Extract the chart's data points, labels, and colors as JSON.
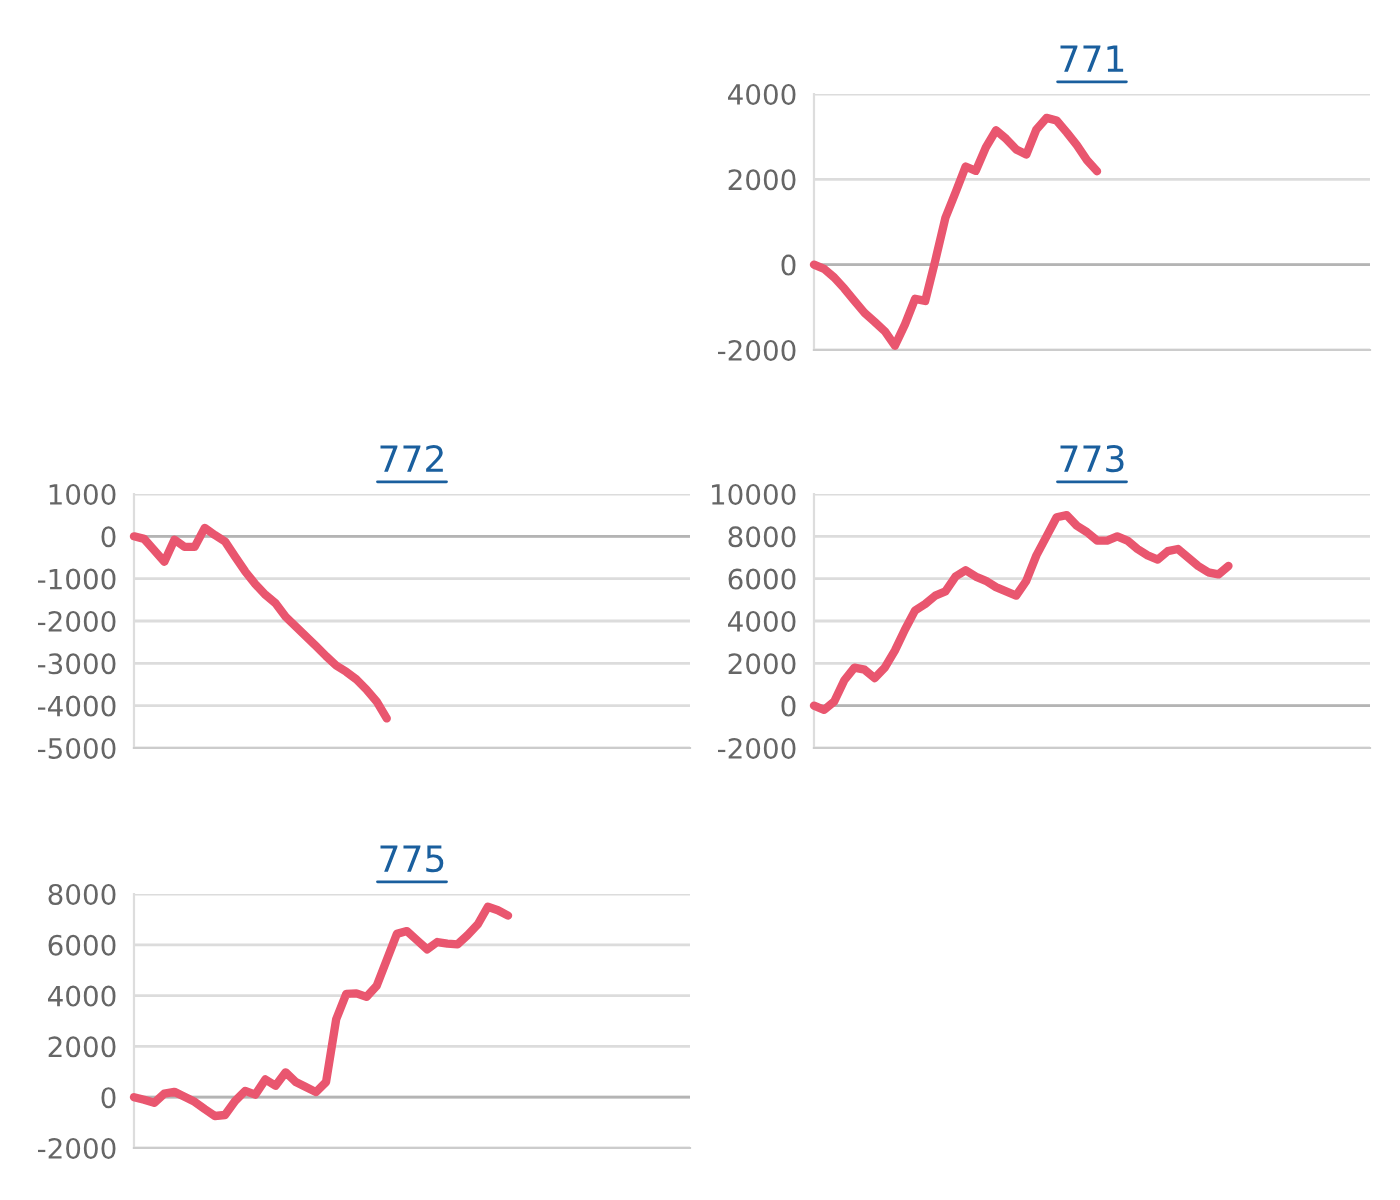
{
  "chart_data": [
    {
      "type": "line",
      "title": "771",
      "categories": [
        null,
        null,
        null,
        null,
        null,
        null,
        null,
        null,
        null,
        null,
        null,
        null,
        null,
        null,
        null,
        null,
        null,
        null,
        null,
        null,
        null,
        null,
        null,
        null,
        null,
        null,
        null,
        null,
        null,
        null,
        null,
        null,
        null,
        null,
        null,
        null,
        null,
        null,
        null,
        null,
        null,
        null,
        null,
        null,
        null,
        null,
        null,
        null,
        null,
        null,
        null,
        null,
        null,
        null,
        null,
        null
      ],
      "series": [
        {
          "color": "#e9566f",
          "values": [
            0,
            -100,
            -300,
            -560,
            -850,
            -1130,
            -1340,
            -1560,
            -1900,
            -1400,
            -800,
            -850,
            100,
            1100,
            1690,
            2300,
            2200,
            2750,
            3150,
            2950,
            2700,
            2580,
            3170,
            3440,
            3380,
            3100,
            2800,
            2450,
            2190,
            null,
            null,
            null,
            null,
            null,
            null,
            null,
            null,
            null,
            null,
            null,
            null,
            null,
            null,
            null,
            null,
            null,
            null,
            null,
            null,
            null,
            null,
            null,
            null,
            null,
            null,
            null
          ]
        }
      ],
      "ylim": [
        -2000,
        4000
      ],
      "yticks": [
        -2000,
        0,
        2000,
        4000
      ],
      "grid": "y",
      "tick_labels": "y",
      "marker": "none",
      "line_style": "solid",
      "ref_lines": [
        {
          "axis": "y",
          "value": 0,
          "color": "#b4b4b4"
        }
      ]
    },
    {
      "type": "line",
      "title": "772",
      "categories": [
        null,
        null,
        null,
        null,
        null,
        null,
        null,
        null,
        null,
        null,
        null,
        null,
        null,
        null,
        null,
        null,
        null,
        null,
        null,
        null,
        null,
        null,
        null,
        null,
        null,
        null,
        null,
        null,
        null,
        null,
        null,
        null,
        null,
        null,
        null,
        null,
        null,
        null,
        null,
        null,
        null,
        null,
        null,
        null,
        null,
        null,
        null,
        null,
        null,
        null,
        null,
        null,
        null,
        null,
        null,
        null
      ],
      "series": [
        {
          "color": "#e9566f",
          "values": [
            0,
            -60,
            -330,
            -600,
            -80,
            -250,
            -250,
            200,
            30,
            -120,
            -480,
            -830,
            -1130,
            -1380,
            -1580,
            -1900,
            -2130,
            -2360,
            -2590,
            -2830,
            -3050,
            -3200,
            -3380,
            -3620,
            -3900,
            -4300,
            null,
            null,
            null,
            null,
            null,
            null,
            null,
            null,
            null,
            null,
            null,
            null,
            null,
            null,
            null,
            null,
            null,
            null,
            null,
            null,
            null,
            null,
            null,
            null,
            null,
            null,
            null,
            null,
            null,
            null
          ]
        }
      ],
      "ylim": [
        -5000,
        1000
      ],
      "yticks": [
        -5000,
        -4000,
        -3000,
        -2000,
        -1000,
        0,
        1000
      ],
      "grid": "y",
      "tick_labels": "y",
      "marker": "none",
      "line_style": "solid",
      "ref_lines": [
        {
          "axis": "y",
          "value": 0,
          "color": "#b4b4b4"
        }
      ]
    },
    {
      "type": "line",
      "title": "773",
      "categories": [
        null,
        null,
        null,
        null,
        null,
        null,
        null,
        null,
        null,
        null,
        null,
        null,
        null,
        null,
        null,
        null,
        null,
        null,
        null,
        null,
        null,
        null,
        null,
        null,
        null,
        null,
        null,
        null,
        null,
        null,
        null,
        null,
        null,
        null,
        null,
        null,
        null,
        null,
        null,
        null,
        null,
        null,
        null,
        null,
        null,
        null,
        null,
        null,
        null,
        null,
        null,
        null,
        null,
        null,
        null,
        null
      ],
      "series": [
        {
          "color": "#e9566f",
          "values": [
            0,
            -200,
            200,
            1200,
            1800,
            1700,
            1300,
            1800,
            2600,
            3600,
            4500,
            4800,
            5200,
            5400,
            6100,
            6400,
            6100,
            5900,
            5600,
            5400,
            5200,
            5900,
            7100,
            8000,
            8900,
            9000,
            8500,
            8200,
            7800,
            7800,
            8000,
            7800,
            7400,
            7100,
            6900,
            7300,
            7400,
            7000,
            6600,
            6300,
            6200,
            6600,
            null,
            null,
            null,
            null,
            null,
            null,
            null,
            null,
            null,
            null,
            null,
            null,
            null,
            null
          ]
        }
      ],
      "ylim": [
        -2000,
        10000
      ],
      "yticks": [
        -2000,
        0,
        2000,
        4000,
        6000,
        8000,
        10000
      ],
      "grid": "y",
      "tick_labels": "y",
      "marker": "none",
      "line_style": "solid",
      "ref_lines": [
        {
          "axis": "y",
          "value": 0,
          "color": "#b4b4b4"
        }
      ]
    },
    {
      "type": "line",
      "title": "775",
      "categories": [
        null,
        null,
        null,
        null,
        null,
        null,
        null,
        null,
        null,
        null,
        null,
        null,
        null,
        null,
        null,
        null,
        null,
        null,
        null,
        null,
        null,
        null,
        null,
        null,
        null,
        null,
        null,
        null,
        null,
        null,
        null,
        null,
        null,
        null,
        null,
        null,
        null,
        null,
        null,
        null,
        null,
        null,
        null,
        null,
        null,
        null,
        null,
        null,
        null,
        null,
        null,
        null,
        null,
        null,
        null,
        null
      ],
      "series": [
        {
          "color": "#e9566f",
          "values": [
            0,
            -100,
            -220,
            140,
            210,
            20,
            -180,
            -470,
            -740,
            -700,
            -150,
            250,
            100,
            700,
            450,
            980,
            600,
            400,
            200,
            600,
            3070,
            4070,
            4090,
            3950,
            4380,
            5400,
            6430,
            6540,
            6180,
            5820,
            6110,
            6050,
            6020,
            6380,
            6800,
            7500,
            7360,
            7150,
            null,
            null,
            null,
            null,
            null,
            null,
            null,
            null,
            null,
            null,
            null,
            null,
            null,
            null,
            null,
            null,
            null,
            null
          ]
        }
      ],
      "ylim": [
        -2000,
        8000
      ],
      "yticks": [
        -2000,
        0,
        2000,
        4000,
        6000,
        8000
      ],
      "grid": "y",
      "tick_labels": "y",
      "marker": "none",
      "line_style": "solid",
      "ref_lines": [
        {
          "axis": "y",
          "value": 0,
          "color": "#b4b4b4"
        }
      ]
    }
  ]
}
